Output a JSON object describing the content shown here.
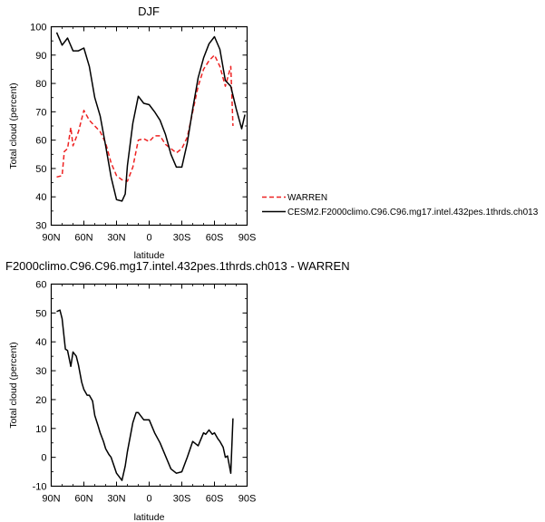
{
  "chart_data": [
    {
      "type": "line",
      "title": "DJF",
      "xlabel": "latitude",
      "ylabel": "Total cloud (percent)",
      "xlim": [
        90,
        -90
      ],
      "ylim": [
        30,
        100
      ],
      "xticks": [
        90,
        60,
        30,
        0,
        -30,
        -60,
        -90
      ],
      "xtick_labels": [
        "90N",
        "60N",
        "30N",
        "0",
        "30S",
        "60S",
        "90S"
      ],
      "yticks": [
        30,
        40,
        50,
        60,
        70,
        80,
        90,
        100
      ],
      "ytick_labels": [
        "30",
        "40",
        "50",
        "60",
        "70",
        "80",
        "90",
        "100"
      ],
      "legend_position": "right",
      "series": [
        {
          "name": "WARREN",
          "style": "dashed",
          "color": "#ee2222",
          "x": [
            85,
            80,
            78,
            75,
            72,
            70,
            65,
            60,
            55,
            50,
            45,
            40,
            35,
            30,
            25,
            20,
            15,
            10,
            5,
            0,
            -5,
            -10,
            -15,
            -20,
            -25,
            -30,
            -35,
            -40,
            -45,
            -50,
            -55,
            -60,
            -65,
            -70,
            -75,
            -77
          ],
          "y": [
            47,
            47.5,
            56,
            57,
            64.5,
            58,
            63,
            70.5,
            67,
            65,
            63,
            59,
            52,
            47.5,
            46,
            45.5,
            50.5,
            60,
            60.5,
            59.5,
            61.5,
            61.5,
            58.5,
            57,
            55.5,
            57,
            61,
            70,
            79,
            85,
            88,
            90,
            86,
            79,
            86,
            65
          ]
        },
        {
          "name": "CESM2.F2000climo.C96.C96.mg17.intel.432pes.1thrds.ch013",
          "style": "solid",
          "color": "#000000",
          "x": [
            85,
            80,
            75,
            70,
            65,
            60,
            55,
            50,
            45,
            40,
            35,
            30,
            25,
            22,
            20,
            15,
            10,
            5,
            0,
            -5,
            -10,
            -15,
            -20,
            -25,
            -30,
            -35,
            -40,
            -45,
            -50,
            -55,
            -60,
            -65,
            -70,
            -75,
            -80,
            -85,
            -88
          ],
          "y": [
            98,
            93.5,
            96,
            91.5,
            91.5,
            92.5,
            86,
            75,
            68.5,
            58,
            47,
            39,
            38.5,
            41,
            51,
            66,
            75.5,
            73,
            72.5,
            70,
            67,
            62,
            55,
            50.5,
            50.5,
            59,
            71,
            82,
            89,
            94,
            96.5,
            92,
            81,
            79,
            71,
            64,
            69
          ]
        }
      ]
    },
    {
      "type": "line",
      "title": "F2000climo.C96.C96.mg17.intel.432pes.1thrds.ch013 - WARREN",
      "xlabel": "latitude",
      "ylabel": "Total cloud (percent)",
      "xlim": [
        90,
        -90
      ],
      "ylim": [
        -10,
        60
      ],
      "xticks": [
        90,
        60,
        30,
        0,
        -30,
        -60,
        -90
      ],
      "xtick_labels": [
        "90N",
        "60N",
        "30N",
        "0",
        "30S",
        "60S",
        "90S"
      ],
      "yticks": [
        -10,
        0,
        10,
        20,
        30,
        40,
        50,
        60
      ],
      "ytick_labels": [
        "-10",
        "0",
        "10",
        "20",
        "30",
        "40",
        "50",
        "60"
      ],
      "series": [
        {
          "style": "solid",
          "color": "#000000",
          "x": [
            85,
            82,
            80,
            77,
            75,
            72,
            70,
            67,
            65,
            62,
            60,
            57,
            55,
            52,
            50,
            47,
            45,
            42,
            40,
            37,
            35,
            30,
            25,
            22,
            20,
            17,
            15,
            12,
            10,
            5,
            0,
            -5,
            -10,
            -15,
            -20,
            -25,
            -30,
            -35,
            -40,
            -45,
            -50,
            -52,
            -55,
            -58,
            -60,
            -63,
            -65,
            -68,
            -70,
            -72,
            -75,
            -77
          ],
          "y": [
            50.5,
            51,
            48,
            37.5,
            37,
            31.5,
            36.5,
            35,
            32,
            26,
            23.5,
            21.5,
            21.5,
            19.5,
            14.5,
            11,
            8.5,
            5.5,
            3,
            1,
            0,
            -5.5,
            -8,
            -3,
            2,
            8,
            12,
            15.5,
            15.5,
            13,
            13,
            8.5,
            5,
            0.5,
            -4,
            -5.5,
            -5,
            0,
            5.5,
            4,
            8.5,
            8,
            9.5,
            8,
            8.5,
            6.5,
            5.5,
            3.5,
            0,
            0.5,
            -5.5,
            13.5
          ]
        }
      ]
    }
  ]
}
